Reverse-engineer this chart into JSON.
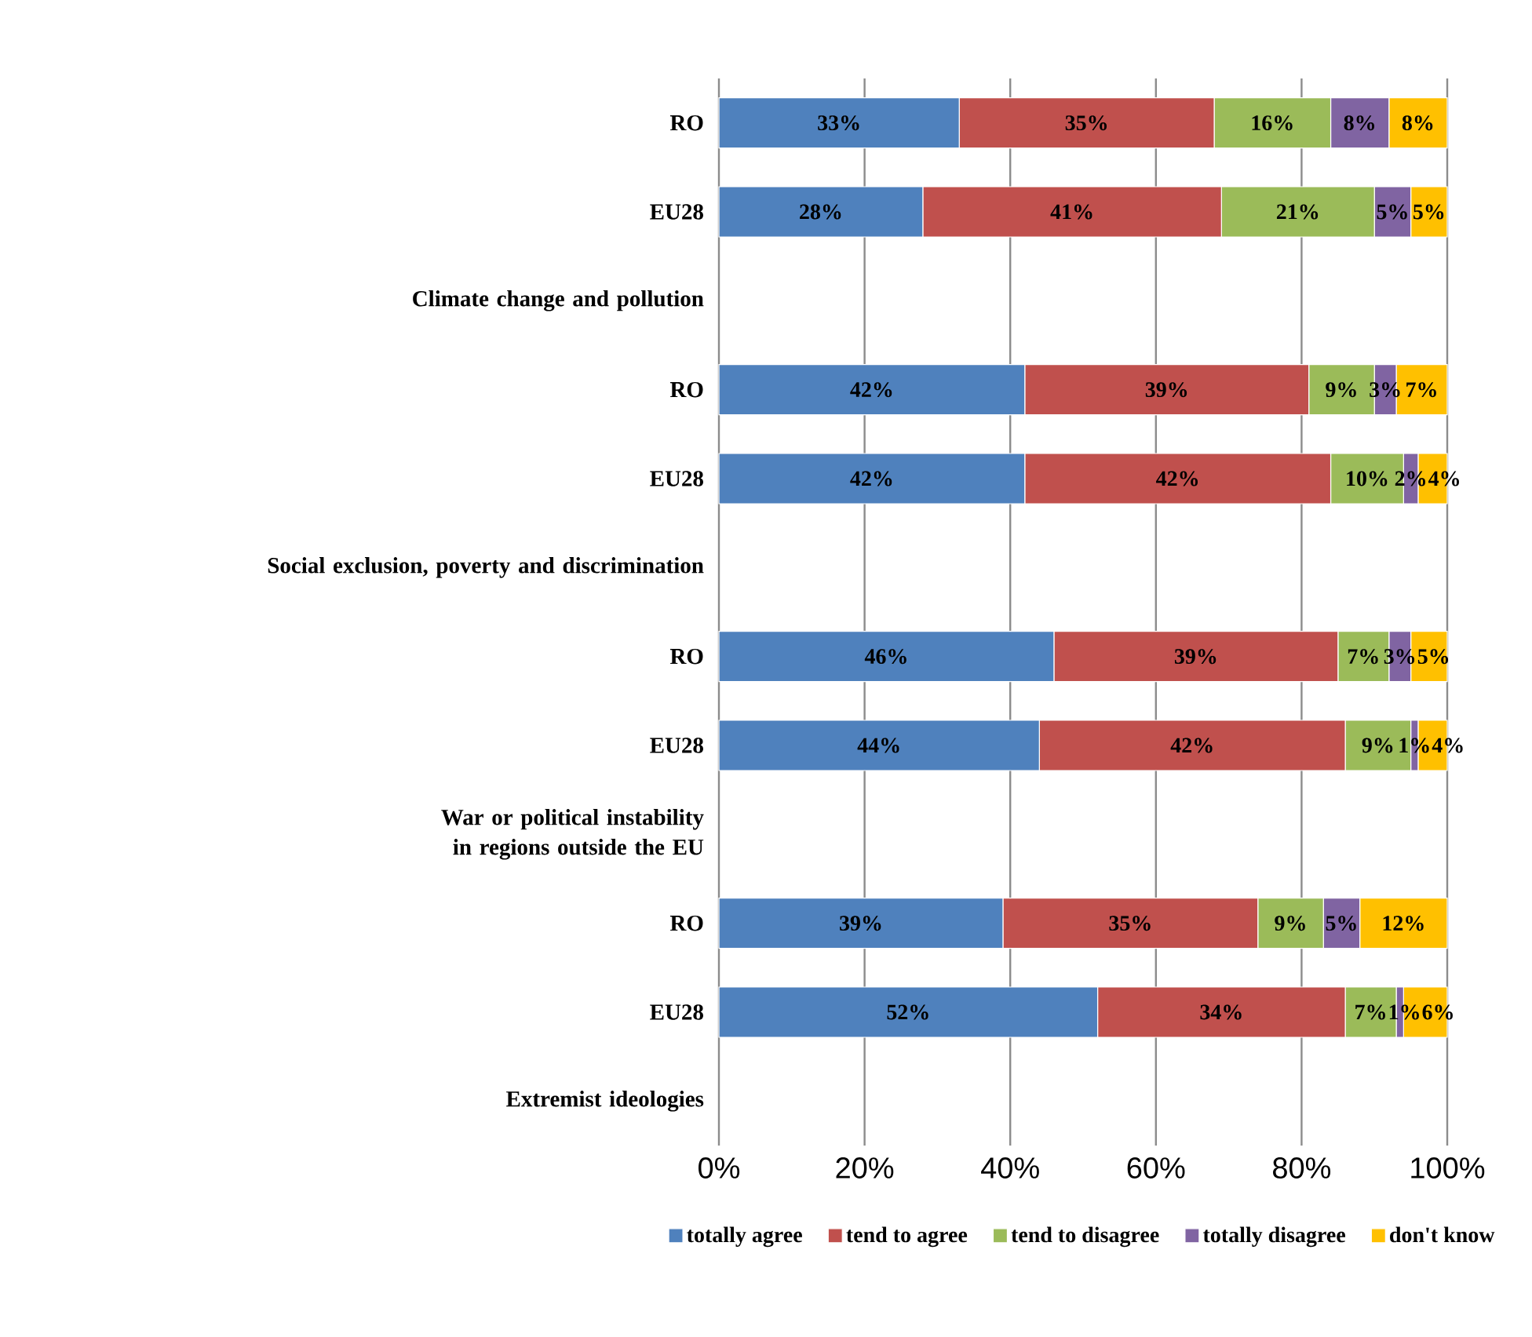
{
  "chart_data": {
    "type": "bar",
    "orientation": "horizontal",
    "stacked": true,
    "categories": [
      "RO",
      "EU28",
      "Climate change and pollution",
      "RO",
      "EU28",
      "Social exclusion, poverty and discrimination",
      "RO",
      "EU28",
      "War or political instability in regions outside the EU",
      "RO",
      "EU28",
      "Extremist ideologies"
    ],
    "series": [
      {
        "name": "totally agree",
        "color": "#4f81bd",
        "values": [
          33,
          28,
          null,
          42,
          42,
          null,
          46,
          44,
          null,
          39,
          52,
          null
        ],
        "value_labels": [
          "33%",
          "28%",
          null,
          "42%",
          "42%",
          null,
          "46%",
          "44%",
          null,
          "39%",
          "52%",
          null
        ]
      },
      {
        "name": "tend to agree",
        "color": "#c0504d",
        "values": [
          35,
          41,
          null,
          39,
          42,
          null,
          39,
          42,
          null,
          35,
          34,
          null
        ],
        "value_labels": [
          "35%",
          "41%",
          null,
          "39%",
          "42%",
          null,
          "39%",
          "42%",
          null,
          "35%",
          "34%",
          null
        ]
      },
      {
        "name": "tend to disagree",
        "color": "#9bbb59",
        "values": [
          16,
          21,
          null,
          9,
          10,
          null,
          7,
          9,
          null,
          9,
          7,
          null
        ],
        "value_labels": [
          "16%",
          "21%",
          null,
          "9%",
          "10%",
          null,
          "7%",
          "9%",
          null,
          "9%",
          "7%",
          null
        ]
      },
      {
        "name": "totally disagree",
        "color": "#8064a2",
        "values": [
          8,
          5,
          null,
          3,
          2,
          null,
          3,
          1,
          null,
          5,
          1,
          null
        ],
        "value_labels": [
          "8%",
          "5%",
          null,
          "3%",
          "2%",
          null,
          "3%",
          "1%",
          null,
          "5%",
          "1%",
          null
        ]
      },
      {
        "name": "don't know",
        "color": "#ffc000",
        "values": [
          8,
          5,
          null,
          7,
          4,
          null,
          5,
          4,
          null,
          12,
          6,
          null
        ],
        "value_labels": [
          "8%",
          "5%",
          null,
          "7%",
          "4%",
          null,
          "5%",
          "4%",
          null,
          "12%",
          "6%",
          null
        ]
      }
    ],
    "xlim": [
      0,
      100
    ],
    "xticks": [
      {
        "value": 0,
        "label": "0%"
      },
      {
        "value": 20,
        "label": "20%"
      },
      {
        "value": 40,
        "label": "40%"
      },
      {
        "value": 60,
        "label": "60%"
      },
      {
        "value": 80,
        "label": "80%"
      },
      {
        "value": 100,
        "label": "100%"
      }
    ],
    "grid": "x",
    "legend": "bottom"
  }
}
